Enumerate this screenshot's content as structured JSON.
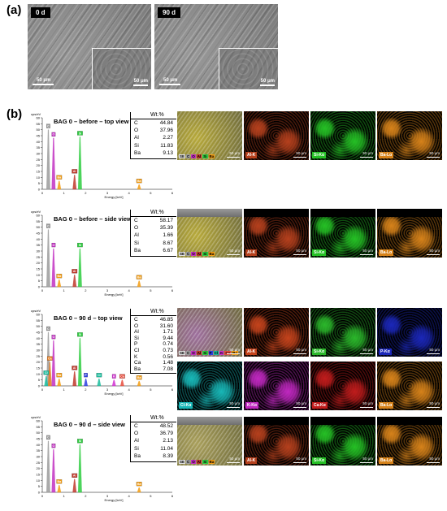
{
  "panel_a": {
    "label": "(a)",
    "images": [
      {
        "tag": "0 d",
        "scale": "50 μm",
        "inset_scale": "50 μm"
      },
      {
        "tag": "90 d",
        "scale": "50 μm",
        "inset_scale": "50 μm"
      }
    ]
  },
  "panel_b": {
    "label": "(b)",
    "axis": {
      "ylabel": "cps/eV",
      "xlabel": "Energy [keV]",
      "yticks": [
        "0",
        "5",
        "10",
        "15",
        "20",
        "25",
        "30",
        "35",
        "40",
        "45",
        "50",
        "55",
        "60"
      ],
      "xticks": [
        "0",
        "1",
        "2",
        "3",
        "4",
        "5",
        "6"
      ]
    },
    "wt_header": "Wt.%",
    "spectra": [
      {
        "title": "BAG 0 – before – top view",
        "rows": [
          [
            "C",
            "44.84"
          ],
          [
            "O",
            "37.96"
          ],
          [
            "Al",
            "2.27"
          ],
          [
            "Si",
            "11.83"
          ],
          [
            "Ba",
            "9.13"
          ]
        ],
        "peaks": [
          {
            "el": "C",
            "x": 0.28,
            "h": 50,
            "color": "#9b9b9b"
          },
          {
            "el": "O",
            "x": 0.52,
            "h": 43,
            "color": "#c231c2"
          },
          {
            "el": "Ba",
            "x": 0.78,
            "h": 7,
            "color": "#f39c12"
          },
          {
            "el": "Al",
            "x": 1.49,
            "h": 12,
            "color": "#c0392b"
          },
          {
            "el": "Si",
            "x": 1.74,
            "h": 44,
            "color": "#2ecc40"
          },
          {
            "el": "Ba",
            "x": 4.47,
            "h": 4,
            "color": "#f39c12"
          }
        ]
      },
      {
        "title": "BAG 0 – before – side view",
        "rows": [
          [
            "C",
            "58.17"
          ],
          [
            "O",
            "35.39"
          ],
          [
            "Al",
            "1.66"
          ],
          [
            "Si",
            "8.67"
          ],
          [
            "Ba",
            "6.67"
          ]
        ],
        "peaks": [
          {
            "el": "C",
            "x": 0.28,
            "h": 48,
            "color": "#9b9b9b"
          },
          {
            "el": "O",
            "x": 0.52,
            "h": 32,
            "color": "#c231c2"
          },
          {
            "el": "Ba",
            "x": 0.78,
            "h": 6,
            "color": "#f39c12"
          },
          {
            "el": "Al",
            "x": 1.49,
            "h": 10,
            "color": "#c0392b"
          },
          {
            "el": "Si",
            "x": 1.74,
            "h": 32,
            "color": "#2ecc40"
          },
          {
            "el": "Ba",
            "x": 4.47,
            "h": 5,
            "color": "#f39c12"
          }
        ]
      },
      {
        "title": "BAG 0 – 90 d – top view",
        "rows": [
          [
            "C",
            "46.85"
          ],
          [
            "O",
            "31.60"
          ],
          [
            "Al",
            "1.71"
          ],
          [
            "Si",
            "9.44"
          ],
          [
            "P",
            "0.74"
          ],
          [
            "Cl",
            "0.73"
          ],
          [
            "K",
            "0.56"
          ],
          [
            "Ca",
            "1.48"
          ],
          [
            "Ba",
            "7.08"
          ]
        ],
        "peaks": [
          {
            "el": "C",
            "x": 0.28,
            "h": 45,
            "color": "#9b9b9b"
          },
          {
            "el": "Ca",
            "x": 0.35,
            "h": 20,
            "color": "#e67e22"
          },
          {
            "el": "O",
            "x": 0.52,
            "h": 38,
            "color": "#c231c2"
          },
          {
            "el": "Cl",
            "x": 0.18,
            "h": 8,
            "color": "#1abc9c"
          },
          {
            "el": "Ba",
            "x": 0.78,
            "h": 6,
            "color": "#f39c12"
          },
          {
            "el": "Al",
            "x": 1.49,
            "h": 12,
            "color": "#c0392b"
          },
          {
            "el": "Si",
            "x": 1.74,
            "h": 40,
            "color": "#2ecc40"
          },
          {
            "el": "P",
            "x": 2.01,
            "h": 6,
            "color": "#2c3ee0"
          },
          {
            "el": "Cl",
            "x": 2.62,
            "h": 6,
            "color": "#1abc9c"
          },
          {
            "el": "K",
            "x": 3.31,
            "h": 5,
            "color": "#d130d1"
          },
          {
            "el": "Ca",
            "x": 3.69,
            "h": 5,
            "color": "#e74c3c"
          },
          {
            "el": "Ba",
            "x": 4.47,
            "h": 4,
            "color": "#f39c12"
          }
        ]
      },
      {
        "title": "BAG 0 – 90 d – side view",
        "rows": [
          [
            "C",
            "48.52"
          ],
          [
            "O",
            "36.79"
          ],
          [
            "Al",
            "2.13"
          ],
          [
            "Si",
            "11.04"
          ],
          [
            "Ba",
            "8.39"
          ]
        ],
        "peaks": [
          {
            "el": "C",
            "x": 0.28,
            "h": 43,
            "color": "#9b9b9b"
          },
          {
            "el": "O",
            "x": 0.52,
            "h": 36,
            "color": "#c231c2"
          },
          {
            "el": "Ba",
            "x": 0.78,
            "h": 6,
            "color": "#f39c12"
          },
          {
            "el": "Al",
            "x": 1.49,
            "h": 11,
            "color": "#c0392b"
          },
          {
            "el": "Si",
            "x": 1.74,
            "h": 40,
            "color": "#2ecc40"
          },
          {
            "el": "Ba",
            "x": 4.47,
            "h": 4,
            "color": "#f39c12"
          }
        ]
      }
    ],
    "maps_rows": [
      [
        {
          "kind": "overlay",
          "legend": [
            "SE",
            "C",
            "O",
            "Al",
            "Si",
            "Ba"
          ],
          "color": "#b7a93a"
        },
        {
          "kind": "element",
          "label": "Al-K",
          "color": "#b5401d"
        },
        {
          "kind": "element",
          "label": "Si-Kα",
          "color": "#25c025"
        },
        {
          "kind": "element",
          "label": "Ba-Lα",
          "color": "#d6821a"
        }
      ],
      [
        {
          "kind": "overlay",
          "legend": [
            "SE",
            "C",
            "O",
            "Al",
            "Si",
            "Ba"
          ],
          "color": "#b7a93a",
          "side": "gray"
        },
        {
          "kind": "element",
          "label": "Al-K",
          "color": "#b5401d",
          "side": "black"
        },
        {
          "kind": "element",
          "label": "Si-Kα",
          "color": "#25c025",
          "side": "black"
        },
        {
          "kind": "element",
          "label": "Ba-Lα",
          "color": "#d6821a",
          "side": "black"
        }
      ],
      [
        {
          "kind": "overlay",
          "legend": [
            "SE",
            "C",
            "O",
            "Al",
            "Si",
            "P",
            "Cl",
            "K",
            "Ca",
            "Ba"
          ],
          "color": "#9d6e9d"
        },
        {
          "kind": "element",
          "label": "Al-K",
          "color": "#c4431c"
        },
        {
          "kind": "element",
          "label": "Si-Kα",
          "color": "#2bb72b"
        },
        {
          "kind": "element",
          "label": "P-Kα",
          "color": "#1b27b8"
        }
      ],
      [
        {
          "kind": "element",
          "label": "Cl-Kα",
          "color": "#18b7b7"
        },
        {
          "kind": "element",
          "label": "K-Kα",
          "color": "#c028c0"
        },
        {
          "kind": "element",
          "label": "Ca-Kα",
          "color": "#c01c1c"
        },
        {
          "kind": "element",
          "label": "Ba-Lα",
          "color": "#d6821a"
        }
      ],
      [
        {
          "kind": "overlay",
          "legend": [
            "SE",
            "C",
            "O",
            "Al",
            "Si",
            "Ba"
          ],
          "color": "#a89e5a",
          "side": "gray"
        },
        {
          "kind": "element",
          "label": "Al-K",
          "color": "#b5401d",
          "side": "black"
        },
        {
          "kind": "element",
          "label": "Si-Kα",
          "color": "#25c025",
          "side": "black"
        },
        {
          "kind": "element",
          "label": "Ba-Lα",
          "color": "#d6821a",
          "side": "black"
        }
      ]
    ],
    "map_scale": "50 μm"
  },
  "colors": {
    "C": "#9b9b9b",
    "O": "#c231c2",
    "Al": "#c0392b",
    "Si": "#2ecc40",
    "Ba": "#f39c12",
    "P": "#2c3ee0",
    "Cl": "#1abc9c",
    "K": "#d130d1",
    "Ca": "#e74c3c"
  }
}
